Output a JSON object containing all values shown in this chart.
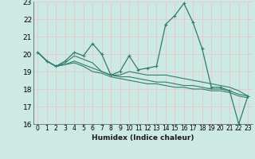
{
  "title": "",
  "xlabel": "Humidex (Indice chaleur)",
  "bg_color": "#cce9e4",
  "grid_color": "#e8c8c8",
  "line_color": "#2e7d6e",
  "xlim": [
    -0.5,
    23.5
  ],
  "ylim": [
    16,
    23
  ],
  "xticks": [
    0,
    1,
    2,
    3,
    4,
    5,
    6,
    7,
    8,
    9,
    10,
    11,
    12,
    13,
    14,
    15,
    16,
    17,
    18,
    19,
    20,
    21,
    22,
    23
  ],
  "yticks": [
    16,
    17,
    18,
    19,
    20,
    21,
    22,
    23
  ],
  "series": [
    [
      20.1,
      19.6,
      19.3,
      19.6,
      20.1,
      19.9,
      20.6,
      20.0,
      18.8,
      19.0,
      19.9,
      19.1,
      19.2,
      19.3,
      21.7,
      22.2,
      22.9,
      21.8,
      20.3,
      18.1,
      18.1,
      17.9,
      16.0,
      17.6
    ],
    [
      20.1,
      19.6,
      19.3,
      19.5,
      19.9,
      19.7,
      19.5,
      19.0,
      18.8,
      18.8,
      19.0,
      18.9,
      18.8,
      18.8,
      18.8,
      18.7,
      18.6,
      18.5,
      18.4,
      18.3,
      18.2,
      18.1,
      17.9,
      17.6
    ],
    [
      20.1,
      19.6,
      19.3,
      19.4,
      19.6,
      19.4,
      19.2,
      19.0,
      18.8,
      18.7,
      18.7,
      18.6,
      18.5,
      18.4,
      18.4,
      18.3,
      18.2,
      18.2,
      18.1,
      18.0,
      18.0,
      17.9,
      17.7,
      17.6
    ],
    [
      20.1,
      19.6,
      19.3,
      19.4,
      19.5,
      19.3,
      19.0,
      18.9,
      18.7,
      18.6,
      18.5,
      18.4,
      18.3,
      18.3,
      18.2,
      18.1,
      18.1,
      18.0,
      18.0,
      17.9,
      17.9,
      17.8,
      17.6,
      17.5
    ]
  ]
}
